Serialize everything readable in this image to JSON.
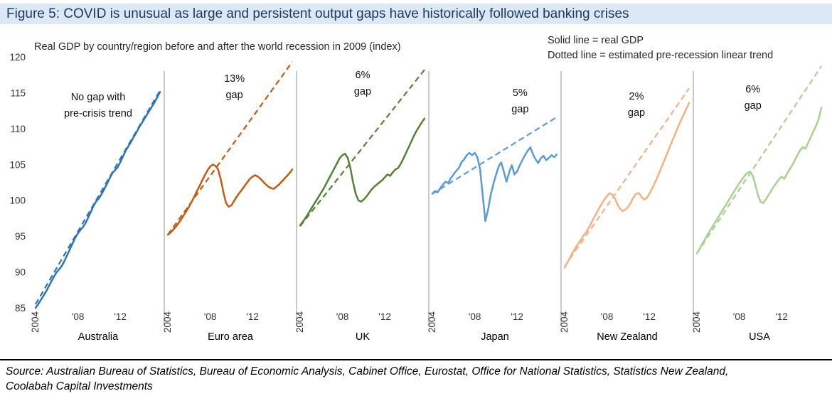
{
  "figure_title": "Figure 5: COVID is unusual as large and persistent output gaps have historically followed banking crises",
  "subtitle": "Real GDP by country/region before and after the world recession in 2009 (index)",
  "legend": {
    "line1": "Solid line = real GDP",
    "line2": "Dotted line = estimated pre-recession linear trend"
  },
  "source": {
    "line1": "Source: Australian Bureau of Statistics, Bureau of Economic Analysis, Cabinet Office, Eurostat, Office for National Statistics, Statistics New Zealand,",
    "line2": "Coolabah Capital Investments"
  },
  "chart_data": {
    "type": "line",
    "title": "Real GDP by country/region before and after the world recession in 2009 (index)",
    "y_axis": {
      "min": 85,
      "max": 120,
      "tick_step": 5,
      "ticks": [
        85,
        90,
        95,
        100,
        105,
        110,
        115,
        120
      ]
    },
    "x_axis": {
      "start_year": 2004,
      "end_year": 2015.75,
      "tick_years": [
        2004,
        2008,
        2012
      ],
      "tick_labels": [
        "2004",
        "'08",
        "'12"
      ]
    },
    "legend_note": {
      "solid": "real GDP",
      "dotted": "estimated pre-recession linear trend"
    },
    "panels": [
      {
        "country": "Australia",
        "color": "#2E75B6",
        "gap": "none",
        "annotation": [
          "No gap with",
          "pre-crisis trend"
        ],
        "trend": [
          85.5,
          115.3
        ],
        "gdp": [
          85.0,
          85.5,
          86.1,
          86.7,
          87.3,
          88.0,
          88.7,
          89.4,
          90.0,
          90.4,
          90.9,
          91.6,
          92.4,
          93.2,
          94.0,
          94.8,
          95.4,
          95.9,
          96.3,
          96.9,
          97.7,
          98.5,
          99.3,
          99.9,
          100.3,
          100.9,
          101.6,
          102.3,
          103.1,
          103.8,
          104.2,
          104.6,
          105.3,
          106.1,
          106.9,
          107.5,
          108.1,
          108.8,
          109.4,
          110.1,
          110.7,
          111.3,
          111.9,
          112.5,
          113.1,
          113.7,
          114.4,
          115.1
        ]
      },
      {
        "country": "Euro area",
        "color": "#C55A11",
        "gap": "13%",
        "annotation": [
          "13%",
          "gap"
        ],
        "trend": [
          95.2,
          119.3
        ],
        "gdp": [
          95.2,
          95.5,
          95.9,
          96.3,
          96.8,
          97.3,
          97.9,
          98.5,
          99.1,
          99.8,
          100.5,
          101.3,
          102.0,
          102.8,
          103.5,
          104.2,
          104.7,
          105.0,
          104.8,
          104.3,
          102.9,
          101.1,
          99.6,
          99.1,
          99.3,
          99.9,
          100.5,
          101.0,
          101.5,
          102.0,
          102.5,
          103.0,
          103.3,
          103.5,
          103.3,
          103.0,
          102.6,
          102.2,
          101.9,
          101.7,
          101.6,
          101.9,
          102.2,
          102.6,
          103.0,
          103.4,
          103.8,
          104.3
        ]
      },
      {
        "country": "UK",
        "color": "#538135",
        "gap": "6%",
        "annotation": [
          "6%",
          "gap"
        ],
        "trend": [
          96.4,
          118.2
        ],
        "gdp": [
          96.5,
          97.0,
          97.5,
          98.1,
          98.7,
          99.3,
          99.9,
          100.5,
          101.1,
          101.7,
          102.4,
          103.1,
          103.8,
          104.5,
          105.2,
          105.9,
          106.3,
          106.5,
          105.9,
          104.5,
          102.5,
          100.9,
          100.0,
          99.8,
          100.1,
          100.5,
          101.0,
          101.5,
          101.9,
          102.2,
          102.5,
          102.8,
          103.2,
          103.6,
          103.4,
          103.9,
          104.3,
          104.5,
          105.1,
          105.8,
          106.6,
          107.4,
          108.2,
          109.0,
          109.7,
          110.3,
          110.9,
          111.4
        ]
      },
      {
        "country": "Japan",
        "color": "#5B9BD5",
        "gap": "5%",
        "annotation": [
          "5%",
          "gap"
        ],
        "trend": [
          100.9,
          111.6
        ],
        "gdp": [
          100.9,
          101.3,
          101.1,
          101.7,
          102.2,
          102.6,
          102.4,
          103.1,
          103.6,
          104.1,
          104.5,
          105.3,
          105.7,
          106.3,
          106.6,
          106.3,
          106.6,
          106.0,
          104.4,
          100.8,
          97.1,
          98.6,
          100.7,
          102.2,
          103.5,
          104.7,
          105.3,
          104.0,
          102.6,
          103.9,
          104.9,
          103.6,
          104.0,
          104.9,
          105.6,
          106.3,
          106.9,
          107.4,
          106.4,
          105.7,
          105.2,
          105.9,
          106.2,
          105.6,
          105.9,
          106.3,
          106.0,
          106.4
        ]
      },
      {
        "country": "New Zealand",
        "color": "#F4B183",
        "gap": "2%",
        "annotation": [
          "2%",
          "gap"
        ],
        "trend": [
          90.8,
          115.6
        ],
        "gdp": [
          90.6,
          91.3,
          92.0,
          92.7,
          93.3,
          93.9,
          94.4,
          95.0,
          95.5,
          96.1,
          96.8,
          97.5,
          98.2,
          98.9,
          99.5,
          100.1,
          100.6,
          101.0,
          100.8,
          100.2,
          99.4,
          98.8,
          98.5,
          98.7,
          99.1,
          99.7,
          100.4,
          100.9,
          101.0,
          100.5,
          100.1,
          100.3,
          100.9,
          101.6,
          102.4,
          103.2,
          104.1,
          105.0,
          105.9,
          106.8,
          107.7,
          108.6,
          109.5,
          110.4,
          111.2,
          112.0,
          112.8,
          113.6
        ]
      },
      {
        "country": "USA",
        "color": "#A9D18E",
        "gap": "6%",
        "annotation": [
          "6%",
          "gap"
        ],
        "trend": [
          92.6,
          118.7
        ],
        "gdp": [
          92.6,
          93.2,
          93.9,
          94.5,
          95.2,
          95.8,
          96.4,
          97.0,
          97.6,
          98.2,
          98.8,
          99.4,
          100.0,
          100.6,
          101.2,
          101.8,
          102.4,
          102.9,
          103.4,
          103.8,
          104.0,
          103.5,
          102.3,
          100.8,
          99.8,
          99.6,
          100.1,
          100.7,
          101.3,
          101.9,
          102.4,
          102.9,
          103.3,
          103.0,
          103.7,
          104.3,
          104.9,
          105.6,
          106.3,
          107.0,
          107.4,
          107.2,
          108.0,
          108.8,
          109.6,
          110.4,
          111.3,
          112.9
        ]
      }
    ]
  }
}
